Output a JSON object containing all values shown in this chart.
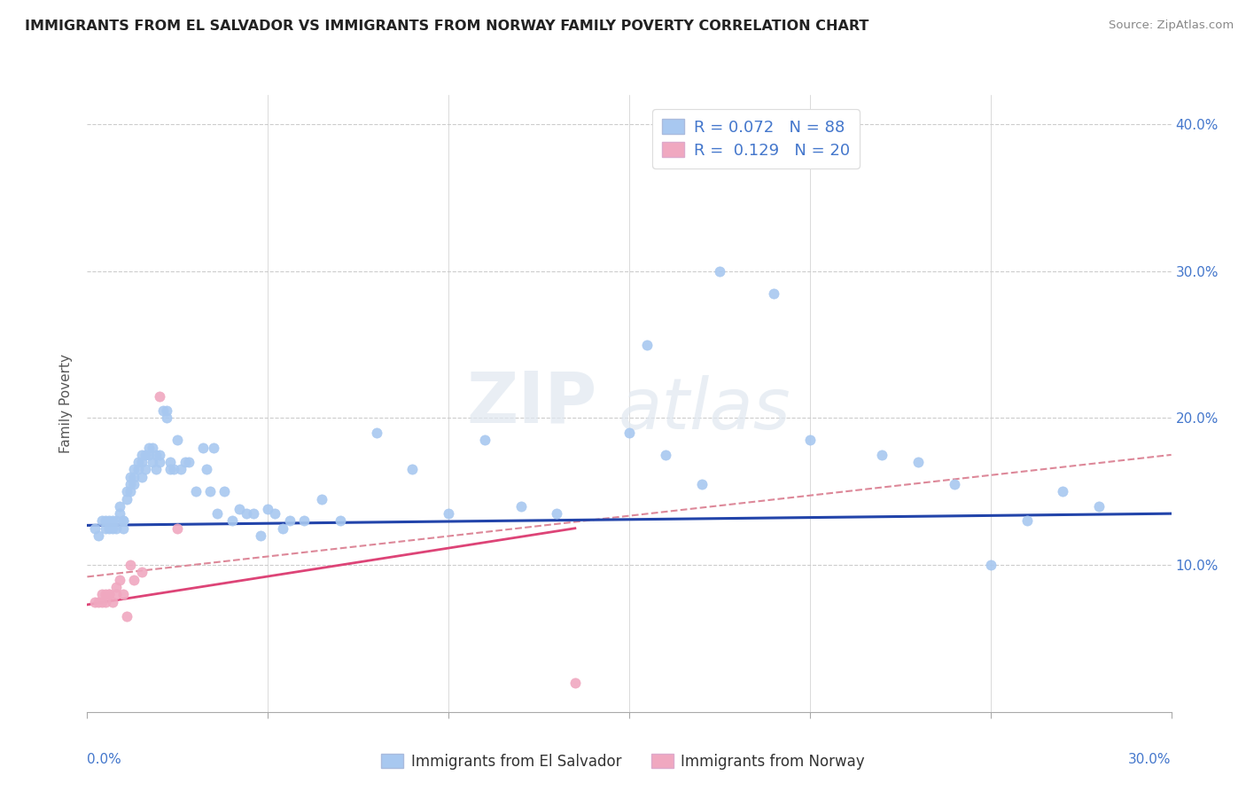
{
  "title": "IMMIGRANTS FROM EL SALVADOR VS IMMIGRANTS FROM NORWAY FAMILY POVERTY CORRELATION CHART",
  "source": "Source: ZipAtlas.com",
  "ylabel": "Family Poverty",
  "legend_label_blue": "Immigrants from El Salvador",
  "legend_label_pink": "Immigrants from Norway",
  "r_blue": "0.072",
  "n_blue": "88",
  "r_pink": "0.129",
  "n_pink": "20",
  "color_blue": "#a8c8f0",
  "color_pink": "#f0a8c0",
  "color_blue_text": "#4477cc",
  "color_trendline_blue": "#2244aa",
  "color_trendline_pink": "#dd4477",
  "color_trendline_dashed": "#dd8899",
  "watermark_zip": "ZIP",
  "watermark_atlas": "atlas",
  "xlim": [
    0.0,
    0.3
  ],
  "ylim": [
    0.0,
    0.42
  ],
  "blue_scatter_x": [
    0.002,
    0.003,
    0.004,
    0.005,
    0.005,
    0.006,
    0.006,
    0.007,
    0.007,
    0.008,
    0.008,
    0.009,
    0.009,
    0.01,
    0.01,
    0.01,
    0.011,
    0.011,
    0.012,
    0.012,
    0.012,
    0.013,
    0.013,
    0.013,
    0.014,
    0.014,
    0.015,
    0.015,
    0.015,
    0.016,
    0.016,
    0.017,
    0.017,
    0.018,
    0.018,
    0.019,
    0.019,
    0.02,
    0.02,
    0.021,
    0.022,
    0.022,
    0.023,
    0.023,
    0.024,
    0.025,
    0.026,
    0.027,
    0.028,
    0.03,
    0.032,
    0.033,
    0.034,
    0.035,
    0.036,
    0.038,
    0.04,
    0.042,
    0.044,
    0.046,
    0.048,
    0.05,
    0.052,
    0.054,
    0.056,
    0.06,
    0.065,
    0.07,
    0.08,
    0.09,
    0.1,
    0.11,
    0.12,
    0.13,
    0.15,
    0.16,
    0.17,
    0.19,
    0.2,
    0.22,
    0.23,
    0.24,
    0.25,
    0.26,
    0.27,
    0.28,
    0.155,
    0.175
  ],
  "blue_scatter_y": [
    0.125,
    0.12,
    0.13,
    0.13,
    0.125,
    0.125,
    0.13,
    0.13,
    0.125,
    0.125,
    0.13,
    0.14,
    0.135,
    0.13,
    0.13,
    0.125,
    0.15,
    0.145,
    0.155,
    0.15,
    0.16,
    0.165,
    0.155,
    0.16,
    0.165,
    0.17,
    0.17,
    0.175,
    0.16,
    0.175,
    0.165,
    0.175,
    0.18,
    0.18,
    0.17,
    0.175,
    0.165,
    0.175,
    0.17,
    0.205,
    0.205,
    0.2,
    0.165,
    0.17,
    0.165,
    0.185,
    0.165,
    0.17,
    0.17,
    0.15,
    0.18,
    0.165,
    0.15,
    0.18,
    0.135,
    0.15,
    0.13,
    0.138,
    0.135,
    0.135,
    0.12,
    0.138,
    0.135,
    0.125,
    0.13,
    0.13,
    0.145,
    0.13,
    0.19,
    0.165,
    0.135,
    0.185,
    0.14,
    0.135,
    0.19,
    0.175,
    0.155,
    0.285,
    0.185,
    0.175,
    0.17,
    0.155,
    0.1,
    0.13,
    0.15,
    0.14,
    0.25,
    0.3
  ],
  "pink_scatter_x": [
    0.002,
    0.003,
    0.004,
    0.004,
    0.005,
    0.005,
    0.006,
    0.006,
    0.007,
    0.008,
    0.008,
    0.009,
    0.01,
    0.011,
    0.012,
    0.013,
    0.015,
    0.02,
    0.025,
    0.135
  ],
  "pink_scatter_y": [
    0.075,
    0.075,
    0.08,
    0.075,
    0.08,
    0.075,
    0.08,
    0.08,
    0.075,
    0.085,
    0.08,
    0.09,
    0.08,
    0.065,
    0.1,
    0.09,
    0.095,
    0.215,
    0.125,
    0.02
  ],
  "trendline_blue_x0": 0.0,
  "trendline_blue_x1": 0.3,
  "trendline_blue_y0": 0.127,
  "trendline_blue_y1": 0.135,
  "trendline_pink_x0": 0.0,
  "trendline_pink_x1": 0.135,
  "trendline_pink_y0": 0.073,
  "trendline_pink_y1": 0.125,
  "trendline_dashed_x0": 0.0,
  "trendline_dashed_x1": 0.3,
  "trendline_dashed_y0": 0.092,
  "trendline_dashed_y1": 0.175
}
